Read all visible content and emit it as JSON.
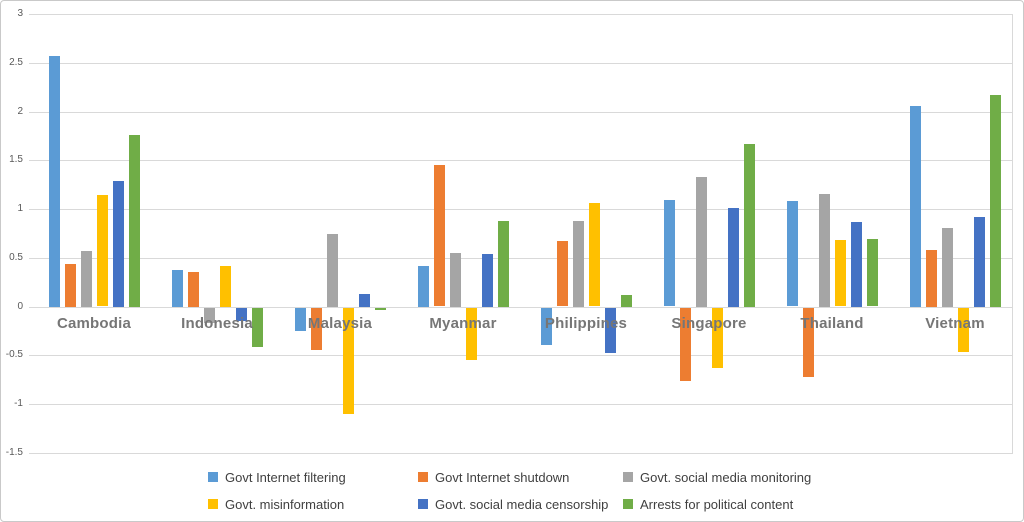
{
  "chart_data": {
    "type": "bar",
    "title": "",
    "categories": [
      "Cambodia",
      "Indonesia",
      "Malaysia",
      "Myanmar",
      "Philippines",
      "Singapore",
      "Thailand",
      "Vietnam"
    ],
    "series": [
      {
        "name": "Govt Internet filtering",
        "color": "#5B9BD5",
        "values": [
          2.57,
          0.38,
          -0.24,
          0.42,
          -0.38,
          1.09,
          1.08,
          2.06
        ]
      },
      {
        "name": "Govt Internet shutdown",
        "color": "#ED7D31",
        "values": [
          0.44,
          0.36,
          -0.43,
          1.45,
          0.67,
          -0.75,
          -0.71,
          0.58
        ]
      },
      {
        "name": "Govt. social media monitoring",
        "color": "#A5A5A5",
        "values": [
          0.57,
          -0.15,
          0.75,
          0.55,
          0.88,
          1.33,
          1.16,
          0.81
        ]
      },
      {
        "name": "Govt. misinformation",
        "color": "#FFC000",
        "values": [
          1.14,
          0.42,
          -1.09,
          -0.53,
          1.06,
          -0.62,
          0.68,
          -0.45
        ]
      },
      {
        "name": "Govt. social media censorship",
        "color": "#4472C4",
        "values": [
          1.29,
          -0.13,
          0.13,
          0.54,
          -0.46,
          1.01,
          0.87,
          0.92
        ]
      },
      {
        "name": "Arrests for political content",
        "color": "#70AD47",
        "values": [
          1.76,
          -0.4,
          -0.02,
          0.88,
          0.12,
          1.67,
          0.69,
          2.17
        ]
      }
    ],
    "y_axis": {
      "min": -1.5,
      "max": 3,
      "step": 0.5,
      "tick_labels": [
        "3",
        "2.5",
        "2",
        "1.5",
        "1",
        "0.5",
        "0",
        "-0.5",
        "-1",
        "-1.5"
      ]
    },
    "grid": true,
    "legend_position": "bottom",
    "colors": {
      "gridline": "#d9d9d9",
      "tick_text": "#595959",
      "category_text": "#767676",
      "legend_text": "#404040"
    }
  }
}
